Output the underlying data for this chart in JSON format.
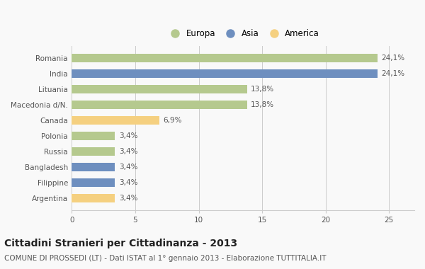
{
  "categories": [
    "Romania",
    "India",
    "Lituania",
    "Macedonia d/N.",
    "Canada",
    "Polonia",
    "Russia",
    "Bangladesh",
    "Filippine",
    "Argentina"
  ],
  "values": [
    24.1,
    24.1,
    13.8,
    13.8,
    6.9,
    3.4,
    3.4,
    3.4,
    3.4,
    3.4
  ],
  "labels": [
    "24,1%",
    "24,1%",
    "13,8%",
    "13,8%",
    "6,9%",
    "3,4%",
    "3,4%",
    "3,4%",
    "3,4%",
    "3,4%"
  ],
  "colors": [
    "#b5c98e",
    "#6e8fbf",
    "#b5c98e",
    "#b5c98e",
    "#f5d080",
    "#b5c98e",
    "#b5c98e",
    "#6e8fbf",
    "#6e8fbf",
    "#f5d080"
  ],
  "legend_labels": [
    "Europa",
    "Asia",
    "America"
  ],
  "legend_colors": [
    "#b5c98e",
    "#6e8fbf",
    "#f5d080"
  ],
  "title": "Cittadini Stranieri per Cittadinanza - 2013",
  "subtitle": "COMUNE DI PROSSEDI (LT) - Dati ISTAT al 1° gennaio 2013 - Elaborazione TUTTITALIA.IT",
  "xlim": [
    0,
    27
  ],
  "xticks": [
    0,
    5,
    10,
    15,
    20,
    25
  ],
  "background_color": "#f9f9f9",
  "bar_height": 0.55,
  "title_fontsize": 10,
  "subtitle_fontsize": 7.5,
  "label_fontsize": 7.5,
  "tick_fontsize": 7.5,
  "legend_fontsize": 8.5
}
